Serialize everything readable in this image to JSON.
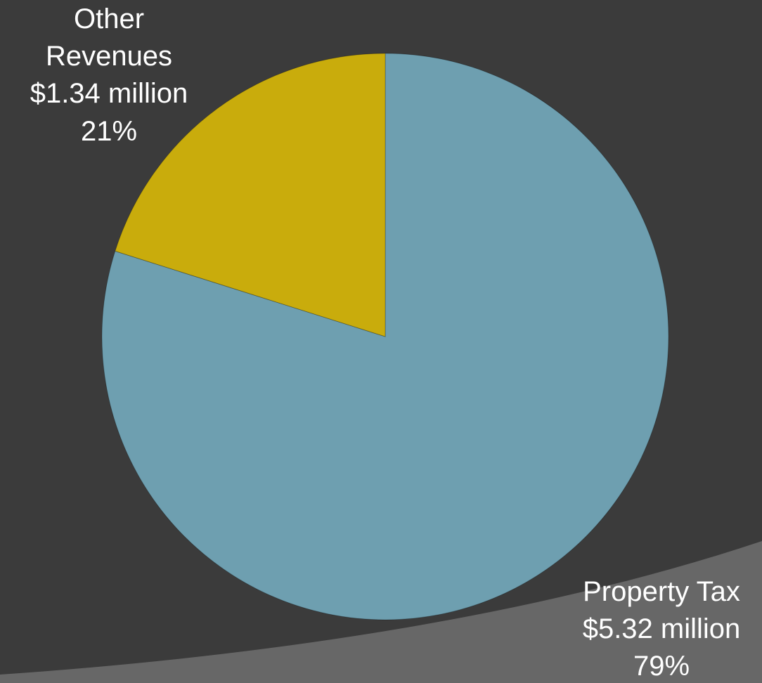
{
  "chart_data": {
    "type": "pie",
    "title": "",
    "slices": [
      {
        "name": "Property Tax",
        "value": 5.32,
        "value_label": "$5.32 million",
        "percent": 79,
        "percent_label": "79%",
        "color": "#6e9fb0"
      },
      {
        "name": "Other Revenues",
        "name_lines": [
          "Other",
          "Revenues"
        ],
        "value": 1.34,
        "value_label": "$1.34 million",
        "percent": 21,
        "percent_label": "21%",
        "color": "#c9ac0c"
      }
    ],
    "start_angle": "12 o'clock",
    "direction": "clockwise",
    "legend": "none (data labels)"
  },
  "theme": {
    "background": "#3b3b3b",
    "accent_swoosh": "#676767",
    "label_color": "#ffffff"
  }
}
